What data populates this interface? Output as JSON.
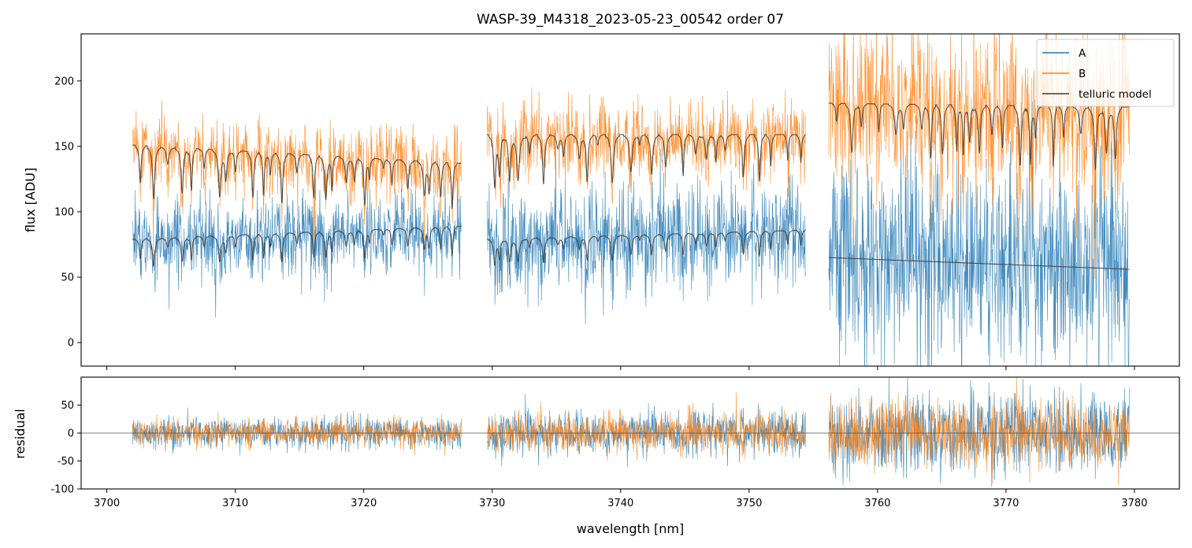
{
  "chart_data": {
    "type": "line",
    "title": "WASP-39_M4318_2023-05-23_00542  order 07",
    "xlabel": "wavelength [nm]",
    "xlim": [
      3698,
      3783.5
    ],
    "xticks": [
      3700,
      3710,
      3720,
      3730,
      3740,
      3750,
      3760,
      3770,
      3780
    ],
    "legend": {
      "position": "top-right",
      "entries": [
        {
          "label": "A",
          "color": "#1f77b4"
        },
        {
          "label": "B",
          "color": "#ff7f0e"
        },
        {
          "label": "telluric model",
          "color": "#3a3a3a"
        }
      ]
    },
    "segments": [
      {
        "x_range": [
          3702.0,
          3727.6
        ],
        "A_level": 84,
        "B_level": 144,
        "A_noise": 15,
        "B_noise": 13,
        "resid_sigma": 12
      },
      {
        "x_range": [
          3729.6,
          3754.4
        ],
        "A_level": 80,
        "B_level": 156,
        "A_noise": 20,
        "B_noise": 14,
        "resid_sigma": 17
      },
      {
        "x_range": [
          3756.2,
          3779.6
        ],
        "A_level": 60,
        "B_level": 180,
        "A_noise": 38,
        "B_noise": 32,
        "resid_sigma": 30
      }
    ],
    "panels": [
      {
        "name": "flux",
        "ylabel": "flux [ADU]",
        "ylim": [
          -18,
          236
        ],
        "yticks": [
          0,
          50,
          100,
          150,
          200
        ],
        "telluric_model": [
          {
            "segment": 0,
            "trace": "A",
            "start": 79,
            "end": 89
          },
          {
            "segment": 0,
            "trace": "B",
            "start": 151,
            "end": 137
          },
          {
            "segment": 1,
            "trace": "A",
            "start": 79,
            "end": 86
          },
          {
            "segment": 1,
            "trace": "B",
            "start": 159,
            "end": 159
          },
          {
            "segment": 2,
            "trace": "A",
            "start": 65,
            "end": 56
          },
          {
            "segment": 2,
            "trace": "B",
            "start": 183,
            "end": 180
          }
        ]
      },
      {
        "name": "residual",
        "ylabel": "residual",
        "ylim": [
          -100,
          100
        ],
        "yticks": [
          -100,
          -50,
          0,
          50
        ],
        "zero_line": 0
      }
    ]
  }
}
